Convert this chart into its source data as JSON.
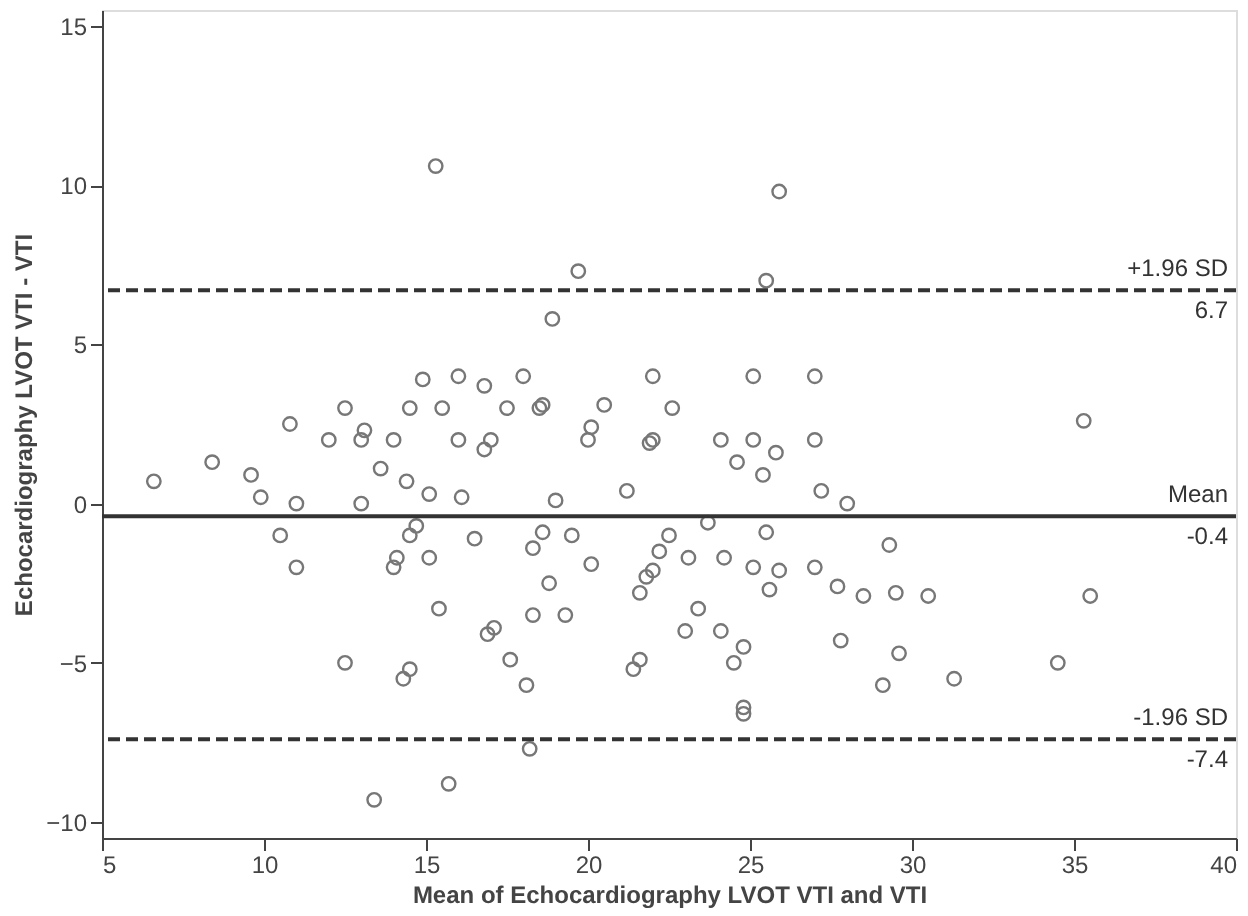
{
  "chart_data": {
    "type": "scatter",
    "xlabel": "Mean of Echocardiography LVOT VTI and VTI",
    "ylabel": "Echocardiography LVOT VTI - VTI",
    "x": [
      6.6,
      8.4,
      9.6,
      9.9,
      10.8,
      11.0,
      12.0,
      12.5,
      13.0,
      13.1,
      13.0,
      13.6,
      14.0,
      14.4,
      14.5,
      14.9,
      15.1,
      15.3,
      15.5,
      16.0,
      16.0,
      16.1,
      16.8,
      16.8,
      17.0,
      17.5,
      18.0,
      18.5,
      18.6,
      18.9,
      19.0,
      19.7,
      20.0,
      20.1,
      20.5,
      21.2,
      25.9,
      25.5,
      22.0,
      25.1,
      27.0,
      22.6,
      22.0,
      21.9,
      24.1,
      25.1,
      25.8,
      27.0,
      24.6,
      25.4,
      35.3,
      27.2,
      28.0,
      10.5,
      11.0,
      14.0,
      14.1,
      14.5,
      14.7,
      15.1,
      15.4,
      16.5,
      16.9,
      17.1,
      12.5,
      14.5,
      14.3,
      17.6,
      18.1,
      18.3,
      18.6,
      19.5,
      18.8,
      18.3,
      19.3,
      20.1,
      18.2,
      13.4,
      15.7,
      22.5,
      23.7,
      22.2,
      22.0,
      21.8,
      21.6,
      23.1,
      24.2,
      25.1,
      25.5,
      25.9,
      25.6,
      27.0,
      27.7,
      28.5,
      29.3,
      29.5,
      30.5,
      35.5,
      23.4,
      23.0,
      24.1,
      24.8,
      24.5,
      21.6,
      21.4,
      27.8,
      29.6,
      29.1,
      31.3,
      34.5,
      24.8,
      24.8
    ],
    "values": [
      0.7,
      1.3,
      0.9,
      0.2,
      2.5,
      0.0,
      2.0,
      3.0,
      2.0,
      2.3,
      0.0,
      1.1,
      2.0,
      0.7,
      3.0,
      3.9,
      0.3,
      10.6,
      3.0,
      4.0,
      2.0,
      0.2,
      3.7,
      1.7,
      2.0,
      3.0,
      4.0,
      3.0,
      3.1,
      5.8,
      0.1,
      7.3,
      2.0,
      2.4,
      3.1,
      0.4,
      9.8,
      7.0,
      4.0,
      4.0,
      4.0,
      3.0,
      2.0,
      1.9,
      2.0,
      2.0,
      1.6,
      2.0,
      1.3,
      0.9,
      2.6,
      0.4,
      0.0,
      -1.0,
      -2.0,
      -2.0,
      -1.7,
      -1.0,
      -0.7,
      -1.7,
      -3.3,
      -1.1,
      -4.1,
      -3.9,
      -5.0,
      -5.2,
      -5.5,
      -4.9,
      -5.7,
      -1.4,
      -0.9,
      -1.0,
      -2.5,
      -3.5,
      -3.5,
      -1.9,
      -7.7,
      -9.3,
      -8.8,
      -1.0,
      -0.6,
      -1.5,
      -2.1,
      -2.3,
      -2.8,
      -1.7,
      -1.7,
      -2.0,
      -0.9,
      -2.1,
      -2.7,
      -2.0,
      -2.6,
      -2.9,
      -1.3,
      -2.8,
      -2.9,
      -2.9,
      -3.3,
      -4.0,
      -4.0,
      -4.5,
      -5.0,
      -4.9,
      -5.2,
      -4.3,
      -4.7,
      -5.7,
      -5.5,
      -5.0,
      -6.4,
      -6.6
    ],
    "color": "#777777",
    "marker": "circle",
    "xlim": [
      5,
      40
    ],
    "xticks": [
      5,
      10,
      15,
      20,
      25,
      30,
      35,
      40
    ],
    "ylim": [
      -10.5,
      15.5
    ],
    "yticks": [
      -10,
      -5,
      0,
      5,
      10,
      15
    ],
    "grid": false,
    "ref_lines": [
      {
        "axis": "y",
        "value": 6.7,
        "label": "+1.96 SD",
        "line_style": "dashed",
        "color": "#333333"
      },
      {
        "axis": "y",
        "value": -0.4,
        "label": "Mean",
        "line_style": "solid",
        "color": "#333333"
      },
      {
        "axis": "y",
        "value": -7.4,
        "label": "-1.96 SD",
        "line_style": "dashed",
        "color": "#333333"
      }
    ],
    "annotations": [
      {
        "text": "6.7",
        "y": 6.7
      },
      {
        "text": "-0.4",
        "y": -0.4
      },
      {
        "text": "-7.4",
        "y": -7.4
      }
    ]
  }
}
